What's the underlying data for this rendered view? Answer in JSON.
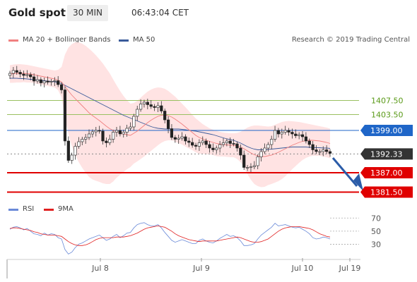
{
  "header": {
    "title": "Gold spot",
    "timeframe": "30 MIN",
    "timestamp": "06:43:04 CET"
  },
  "legend": {
    "ma20_label": "MA 20 + Bollinger Bands",
    "ma50_label": "MA 50",
    "credit": "Research © 2019 Trading Central",
    "ma20_color": "#f08080",
    "ma50_color": "#3a5a9a"
  },
  "rsi_legend": {
    "rsi_label": "RSI",
    "ma_label": "9MA",
    "rsi_color": "#6a8ad8",
    "ma_color": "#e02020"
  },
  "chart_data": {
    "type": "candlestick",
    "title": "Gold spot",
    "x_ticks": [
      "Jul 8",
      "Jul 9",
      "Jul 10",
      "Jul 19"
    ],
    "ylim": [
      1379,
      1420
    ],
    "levels": [
      {
        "value": 1407.5,
        "label": "1407.50",
        "kind": "resistance",
        "color": "#9ac060"
      },
      {
        "value": 1403.5,
        "label": "1403.50",
        "kind": "resistance",
        "color": "#9ac060"
      },
      {
        "value": 1399.0,
        "label": "1399.00",
        "kind": "pivot",
        "color": "#1f66c8"
      },
      {
        "value": 1392.33,
        "label": "1392.33",
        "kind": "last-price",
        "color": "#333333"
      },
      {
        "value": 1387.0,
        "label": "1387.00",
        "kind": "support",
        "color": "#e00000"
      },
      {
        "value": 1381.5,
        "label": "1381.50",
        "kind": "support",
        "color": "#e00000"
      }
    ],
    "close": [
      1415.2,
      1416.0,
      1415.5,
      1415.0,
      1414.6,
      1414.8,
      1414.2,
      1413.0,
      1413.4,
      1412.5,
      1413.0,
      1412.7,
      1412.9,
      1413.1,
      1412.0,
      1410.5,
      1396.0,
      1390.5,
      1392.0,
      1394.5,
      1395.8,
      1396.5,
      1397.0,
      1398.0,
      1398.6,
      1399.0,
      1398.8,
      1396.0,
      1395.5,
      1396.5,
      1398.5,
      1399.0,
      1398.0,
      1398.5,
      1399.6,
      1400.0,
      1403.0,
      1405.0,
      1406.5,
      1407.0,
      1406.3,
      1405.8,
      1405.5,
      1406.0,
      1404.5,
      1402.0,
      1399.5,
      1397.0,
      1396.5,
      1396.8,
      1397.2,
      1396.0,
      1395.6,
      1394.8,
      1394.5,
      1395.5,
      1396.0,
      1395.0,
      1394.0,
      1393.5,
      1394.0,
      1395.0,
      1395.5,
      1396.0,
      1395.3,
      1395.2,
      1394.0,
      1392.0,
      1388.5,
      1388.5,
      1388.7,
      1389.0,
      1391.5,
      1393.0,
      1394.0,
      1395.0,
      1396.5,
      1399.0,
      1398.0,
      1398.5,
      1399.0,
      1398.5,
      1398.0,
      1397.5,
      1397.8,
      1397.2,
      1396.0,
      1395.0,
      1393.5,
      1393.0,
      1393.0,
      1393.5,
      1393.0,
      1392.5
    ],
    "ma20": [
      1415.0,
      1415.1,
      1415.2,
      1415.2,
      1415.2,
      1415.1,
      1415.0,
      1414.8,
      1414.6,
      1414.4,
      1414.2,
      1414.0,
      1413.8,
      1413.6,
      1413.3,
      1412.7,
      1411.5,
      1410.2,
      1409.0,
      1408.0,
      1407.0,
      1406.0,
      1405.0,
      1404.0,
      1403.2,
      1402.5,
      1401.8,
      1401.0,
      1400.2,
      1399.5,
      1399.0,
      1398.7,
      1398.3,
      1398.0,
      1397.8,
      1397.6,
      1398.2,
      1398.8,
      1399.6,
      1400.4,
      1401.2,
      1401.9,
      1402.5,
      1403.0,
      1403.3,
      1403.4,
      1403.2,
      1402.8,
      1402.2,
      1401.5,
      1400.8,
      1400.0,
      1399.2,
      1398.4,
      1397.6,
      1397.0,
      1396.6,
      1396.2,
      1395.9,
      1395.6,
      1395.3,
      1395.1,
      1395.0,
      1394.9,
      1394.8,
      1394.8,
      1394.6,
      1394.3,
      1393.8,
      1393.2,
      1392.6,
      1392.1,
      1391.8,
      1391.6,
      1391.6,
      1391.8,
      1392.0,
      1392.4,
      1392.8,
      1393.3,
      1393.8,
      1394.3,
      1394.8,
      1395.2,
      1395.6,
      1395.9,
      1396.1,
      1396.2,
      1396.2,
      1396.1,
      1396.0,
      1395.8,
      1395.6,
      1395.3
    ],
    "bb_upper": [
      1417.5,
      1417.7,
      1417.8,
      1417.8,
      1417.7,
      1417.6,
      1417.4,
      1417.2,
      1417.0,
      1416.8,
      1416.6,
      1416.4,
      1416.2,
      1416.0,
      1416.2,
      1417.0,
      1420.5,
      1422.5,
      1423.5,
      1424.0,
      1424.0,
      1423.6,
      1423.0,
      1422.2,
      1421.3,
      1420.3,
      1419.2,
      1418.0,
      1416.6,
      1415.2,
      1413.5,
      1411.8,
      1410.2,
      1408.8,
      1407.6,
      1406.6,
      1406.8,
      1407.4,
      1408.3,
      1409.2,
      1410.0,
      1410.6,
      1411.0,
      1411.2,
      1411.1,
      1410.8,
      1410.2,
      1409.4,
      1408.6,
      1407.6,
      1406.6,
      1405.6,
      1404.5,
      1403.4,
      1402.4,
      1401.6,
      1400.8,
      1400.2,
      1399.6,
      1399.2,
      1398.9,
      1398.6,
      1398.4,
      1398.3,
      1398.2,
      1398.2,
      1398.3,
      1398.6,
      1399.2,
      1399.8,
      1400.2,
      1400.4,
      1400.4,
      1400.3,
      1400.2,
      1400.1,
      1400.2,
      1400.6,
      1401.0,
      1401.4,
      1401.6,
      1401.7,
      1401.6,
      1401.5,
      1401.4,
      1401.2,
      1401.0,
      1400.8,
      1400.6,
      1400.4,
      1400.2,
      1400.0,
      1399.8,
      1399.5
    ],
    "bb_lower": [
      1412.5,
      1412.5,
      1412.6,
      1412.6,
      1412.7,
      1412.6,
      1412.6,
      1412.4,
      1412.2,
      1412.0,
      1411.8,
      1411.6,
      1411.4,
      1411.2,
      1410.4,
      1408.4,
      1402.5,
      1398.0,
      1394.5,
      1392.0,
      1390.0,
      1388.4,
      1387.0,
      1385.8,
      1385.1,
      1384.7,
      1384.4,
      1384.0,
      1383.8,
      1383.8,
      1384.5,
      1385.6,
      1386.4,
      1387.2,
      1388.0,
      1388.6,
      1389.6,
      1390.2,
      1390.9,
      1391.6,
      1392.4,
      1393.2,
      1394.0,
      1394.8,
      1395.5,
      1396.0,
      1396.2,
      1396.2,
      1395.8,
      1395.4,
      1395.0,
      1394.4,
      1393.9,
      1393.4,
      1392.8,
      1392.4,
      1392.4,
      1392.2,
      1392.2,
      1392.0,
      1391.7,
      1391.6,
      1391.6,
      1391.5,
      1391.4,
      1391.4,
      1390.9,
      1390.0,
      1388.4,
      1386.6,
      1385.0,
      1383.8,
      1383.2,
      1382.9,
      1383.0,
      1383.5,
      1383.8,
      1384.2,
      1384.6,
      1385.2,
      1386.0,
      1386.9,
      1388.0,
      1388.9,
      1389.8,
      1390.6,
      1391.2,
      1391.6,
      1391.8,
      1391.8,
      1391.8,
      1391.6,
      1391.4,
      1391.1
    ],
    "ma50": [
      1413.8,
      1413.8,
      1413.8,
      1413.7,
      1413.7,
      1413.6,
      1413.5,
      1413.4,
      1413.3,
      1413.2,
      1413.1,
      1413.0,
      1412.9,
      1412.8,
      1412.6,
      1412.3,
      1411.8,
      1411.3,
      1410.8,
      1410.3,
      1409.8,
      1409.3,
      1408.8,
      1408.3,
      1407.8,
      1407.3,
      1406.8,
      1406.3,
      1405.8,
      1405.3,
      1404.8,
      1404.3,
      1403.8,
      1403.3,
      1402.9,
      1402.5,
      1402.1,
      1401.7,
      1401.3,
      1400.9,
      1400.5,
      1400.1,
      1399.8,
      1399.6,
      1399.5,
      1399.4,
      1399.4,
      1399.4,
      1399.4,
      1399.4,
      1399.3,
      1399.2,
      1399.0,
      1398.9,
      1398.8,
      1398.6,
      1398.4,
      1398.2,
      1398.0,
      1397.8,
      1397.5,
      1397.2,
      1396.9,
      1396.6,
      1396.4,
      1396.2,
      1395.8,
      1395.4,
      1394.9,
      1394.4,
      1394.0,
      1393.7,
      1393.5,
      1393.5,
      1393.5,
      1393.6,
      1393.7,
      1393.8,
      1393.9,
      1394.0,
      1394.1,
      1394.2,
      1394.3,
      1394.3,
      1394.3,
      1394.3,
      1394.3,
      1394.2,
      1394.2,
      1394.1,
      1394.1,
      1394.0,
      1394.0,
      1393.9
    ],
    "rsi_axis": {
      "ticks": [
        70,
        50,
        30
      ],
      "ylim": [
        10,
        80
      ]
    },
    "rsi": [
      53,
      56,
      57,
      55,
      52,
      54,
      50,
      46,
      45,
      43,
      47,
      44,
      46,
      45,
      40,
      38,
      22,
      15,
      18,
      25,
      30,
      32,
      35,
      38,
      40,
      42,
      44,
      40,
      36,
      38,
      42,
      45,
      40,
      43,
      47,
      48,
      55,
      60,
      62,
      63,
      60,
      58,
      58,
      60,
      55,
      48,
      42,
      36,
      33,
      35,
      37,
      35,
      33,
      31,
      31,
      36,
      38,
      35,
      33,
      32,
      35,
      39,
      42,
      45,
      42,
      43,
      40,
      35,
      28,
      28,
      29,
      31,
      38,
      44,
      48,
      52,
      56,
      62,
      58,
      59,
      60,
      58,
      56,
      55,
      56,
      53,
      50,
      46,
      40,
      38,
      39,
      41,
      40,
      38
    ],
    "rsi_ma": [
      54,
      55,
      55,
      54,
      53,
      52,
      51,
      49,
      48,
      46,
      45,
      44,
      44,
      44,
      43,
      42,
      38,
      34,
      31,
      29,
      28,
      28,
      29,
      31,
      34,
      37,
      39,
      40,
      40,
      40,
      40,
      41,
      41,
      41,
      42,
      43,
      45,
      47,
      50,
      53,
      55,
      56,
      57,
      58,
      57,
      56,
      53,
      50,
      46,
      43,
      41,
      39,
      37,
      36,
      35,
      34,
      35,
      35,
      35,
      35,
      35,
      36,
      37,
      38,
      39,
      40,
      41,
      40,
      38,
      36,
      34,
      33,
      33,
      34,
      36,
      38,
      42,
      46,
      50,
      53,
      55,
      56,
      57,
      57,
      57,
      56,
      55,
      54,
      52,
      49,
      46,
      44,
      42,
      41
    ]
  }
}
